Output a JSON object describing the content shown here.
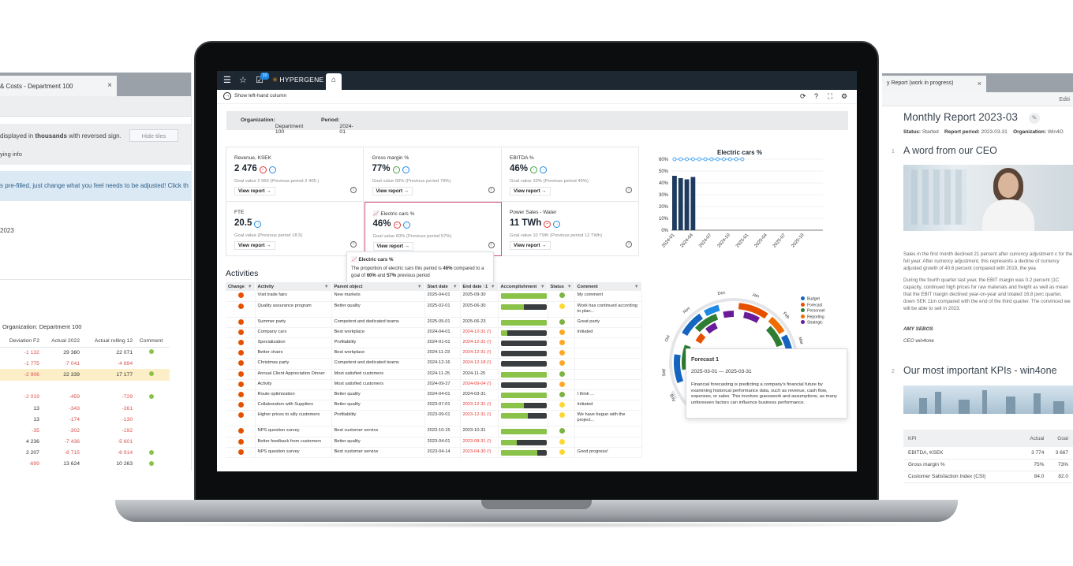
{
  "left_window": {
    "tab_title": "& Costs - Department 100",
    "tab_close": "×",
    "note_prefix": "displayed in ",
    "note_bold": "thousands",
    "note_suffix": " with reversed sign.",
    "hide_tiles_label": "Hide tiles",
    "info_link": "ying info",
    "blue_info": "s pre-filled, just change what you feel needs to be adjusted! Click th",
    "year_text": "2023",
    "organization": "Organization: Department 100",
    "table": {
      "headers": [
        "Deviation F2",
        "Actual 2022",
        "Actual rolling 12",
        "Comment"
      ],
      "rows": [
        {
          "dev": "-1 132",
          "a22": "29 380",
          "r12": "22 071",
          "comment": true,
          "dev_neg": true,
          "a22_neg": false,
          "r12_neg": false,
          "highlight": false
        },
        {
          "dev": "-1 775",
          "a22": "-7 041",
          "r12": "-4 894",
          "comment": false,
          "dev_neg": true,
          "a22_neg": true,
          "r12_neg": true,
          "highlight": false
        },
        {
          "dev": "-2 906",
          "a22": "22 339",
          "r12": "17 177",
          "comment": true,
          "dev_neg": true,
          "a22_neg": false,
          "r12_neg": false,
          "highlight": true
        },
        {
          "dev": "",
          "a22": "",
          "r12": "",
          "comment": false,
          "dev_neg": false,
          "a22_neg": false,
          "r12_neg": false,
          "highlight": false
        },
        {
          "dev": "-2 019",
          "a22": "-459",
          "r12": "-729",
          "comment": true,
          "dev_neg": true,
          "a22_neg": true,
          "r12_neg": true,
          "highlight": false
        },
        {
          "dev": "13",
          "a22": "-343",
          "r12": "-261",
          "comment": false,
          "dev_neg": false,
          "a22_neg": true,
          "r12_neg": true,
          "highlight": false
        },
        {
          "dev": "13",
          "a22": "-174",
          "r12": "-130",
          "comment": false,
          "dev_neg": false,
          "a22_neg": true,
          "r12_neg": true,
          "highlight": false
        },
        {
          "dev": "-35",
          "a22": "-302",
          "r12": "-192",
          "comment": false,
          "dev_neg": true,
          "a22_neg": true,
          "r12_neg": true,
          "highlight": false
        },
        {
          "dev": "4 236",
          "a22": "-7 436",
          "r12": "-5 601",
          "comment": false,
          "dev_neg": false,
          "a22_neg": true,
          "r12_neg": true,
          "highlight": false
        },
        {
          "dev": "2 207",
          "a22": "-8 715",
          "r12": "-6 914",
          "comment": true,
          "dev_neg": false,
          "a22_neg": true,
          "r12_neg": true,
          "highlight": false
        },
        {
          "dev": "-699",
          "a22": "13 624",
          "r12": "10 263",
          "comment": true,
          "dev_neg": true,
          "a22_neg": false,
          "r12_neg": false,
          "highlight": false
        }
      ]
    }
  },
  "right_window": {
    "tab_title": "y Report (work in progress)",
    "tab_close": "×",
    "edit_label": "Editi",
    "title": "Monthly Report 2023-03",
    "status_label": "Status:",
    "status_value": "Started",
    "period_label": "Report period:",
    "period_value": "2023-03-31",
    "org_label": "Organization:",
    "org_value": "Win4O",
    "section1_num": "1",
    "section1_title": "A word from our CEO",
    "para1": "Sales in the first month declined 21 percent after currency adjustment c for the full year. After currency adjustment, this represents a decline of currency adjusted growth of 40.6 percent compared with 2019, the yea",
    "para2": "During the fourth quarter last year, the EBIT margin was 0.2 percent (1C capacity, continued high prices for raw materials and freight as well as mean that the EBIT margin declined year-on-year and totaled 16.8 perc quarter, down SEK 11m compared with the end of the third quarter. The convinced we will be able to sell in 2023.",
    "sig_name": "AMY SEBOS",
    "sig_role": "CEO win4one",
    "section2_num": "2",
    "section2_title": "Our most important KPIs - win4one",
    "kpi_headers": [
      "KPI",
      "Actual",
      "Goal"
    ],
    "kpi_rows": [
      {
        "kpi": "EBITDA, KSEK",
        "actual": "3 774",
        "goal": "3 667"
      },
      {
        "kpi": "Gross margin %",
        "actual": "75%",
        "goal": "73%"
      },
      {
        "kpi": "Customer Satisfaction Index (CSI)",
        "actual": "84.0",
        "goal": "82.0"
      }
    ]
  },
  "app": {
    "brand": "HYPERGENE",
    "badge_count": "10",
    "show_left_column": "Show left-hand column",
    "org_label": "Organization:",
    "org_value": "Department 100",
    "period_label": "Period:",
    "period_value": "2024-01",
    "view_report_label": "View report →",
    "kpis": [
      {
        "title": "Revenue, KSEK",
        "value": "2 476",
        "goal": "Goal value 2 960 (Previous period 2 405 )",
        "icons": [
          "red",
          "blue"
        ],
        "selected": false
      },
      {
        "title": "Gross margin %",
        "value": "77%",
        "goal": "Goal value 50% (Previous period 79%)",
        "icons": [
          "green",
          "blue"
        ],
        "selected": false
      },
      {
        "title": "EBITDA %",
        "value": "46%",
        "goal": "Goal value 10% (Previous period 45%)",
        "icons": [
          "green",
          "blue"
        ],
        "selected": false
      },
      {
        "title": "FTE",
        "value": "20.5",
        "goal": "Goal value (Previous period 18.5)",
        "icons": [
          "blue"
        ],
        "selected": false
      },
      {
        "title": "Electric cars %",
        "value": "46%",
        "goal": "Goal value 60% (Previous period 57%)",
        "icons": [
          "red",
          "blue"
        ],
        "selected": true
      },
      {
        "title": "Power Sales - Water",
        "value": "11 TWh",
        "goal": "Goal value 10 TWh (Previous period 12 TWh)",
        "icons": [
          "red",
          "blue"
        ],
        "selected": false
      }
    ],
    "tooltip": {
      "title": "Electric cars %",
      "text_a": "The proportion of electric cars this period is ",
      "v1": "46%",
      "text_b": " compared to a goal of ",
      "v2": "60%",
      "text_c": " and ",
      "v3": "57%",
      "text_d": " previous period"
    },
    "activities": {
      "title": "Activities",
      "headers": [
        "Change",
        "Activity",
        "Parent object",
        "Start date",
        "End date ↑1",
        "Accomplishment",
        "Status",
        "Comment"
      ],
      "rows": [
        {
          "activity": "Visit trade fairs",
          "parent": "New markets",
          "start": "2025-04-01",
          "end": "2025-09-30",
          "overdue": false,
          "acc": 100,
          "status": "green",
          "comment": "My comment"
        },
        {
          "activity": "Quality assurance program",
          "parent": "Better quality",
          "start": "2025-02-01",
          "end": "2025-06-30",
          "overdue": false,
          "acc": 50,
          "status": "yellow",
          "comment": "Work has continued according to plan..."
        },
        {
          "activity": "Summer party",
          "parent": "Competent and dedicated teams",
          "start": "2025-05-01",
          "end": "2025-06-23",
          "overdue": false,
          "acc": 100,
          "status": "green",
          "comment": "Great party"
        },
        {
          "activity": "Company cars",
          "parent": "Best workplace",
          "start": "2024-04-01",
          "end": "2024-12-31 (!)",
          "overdue": true,
          "acc": 15,
          "status": "orange",
          "comment": "Initiated"
        },
        {
          "activity": "Specialization",
          "parent": "Profitability",
          "start": "2024-01-01",
          "end": "2024-12-31 (!)",
          "overdue": true,
          "acc": 0,
          "status": "orange",
          "comment": ""
        },
        {
          "activity": "Better chairs",
          "parent": "Best workplace",
          "start": "2024-11-23",
          "end": "2024-12-31 (!)",
          "overdue": true,
          "acc": 0,
          "status": "orange",
          "comment": ""
        },
        {
          "activity": "Christmas party",
          "parent": "Competent and dedicated teams",
          "start": "2024-12-16",
          "end": "2024-12-18 (!)",
          "overdue": true,
          "acc": 0,
          "status": "orange",
          "comment": ""
        },
        {
          "activity": "Annual Client Appreciation Dinner",
          "parent": "Most satisfied customers",
          "start": "2024-11-25",
          "end": "2024-11-25",
          "overdue": false,
          "acc": 100,
          "status": "green",
          "comment": ""
        },
        {
          "activity": "Activity",
          "parent": "Most satisfied customers",
          "start": "2024-09-27",
          "end": "2024-09-04 (!)",
          "overdue": true,
          "acc": 0,
          "status": "orange",
          "comment": ""
        },
        {
          "activity": "Route optimization",
          "parent": "Better quality",
          "start": "2024-04-01",
          "end": "2024-03-31",
          "overdue": false,
          "acc": 100,
          "status": "green",
          "comment": "I think ..."
        },
        {
          "activity": "Collaboration with Suppliers",
          "parent": "Better quality",
          "start": "2023-07-01",
          "end": "2023-12-31 (!)",
          "overdue": true,
          "acc": 50,
          "status": "yellow",
          "comment": "Initiated"
        },
        {
          "activity": "Higher prices to silly customers",
          "parent": "Profitability",
          "start": "2023-09-01",
          "end": "2023-12-31 (!)",
          "overdue": true,
          "acc": 60,
          "status": "yellow",
          "comment": "We have begun with the project..."
        },
        {
          "activity": "NPS question survey",
          "parent": "Best customer service",
          "start": "2023-10-15",
          "end": "2023-10-31",
          "overdue": false,
          "acc": 100,
          "status": "green",
          "comment": ""
        },
        {
          "activity": "Better feedback from customers",
          "parent": "Better quality",
          "start": "2023-04-01",
          "end": "2023-08-31 (!)",
          "overdue": true,
          "acc": 35,
          "status": "yellow",
          "comment": ""
        },
        {
          "activity": "NPS question survey",
          "parent": "Best customer service",
          "start": "2023-04-14",
          "end": "2023-04-30 (!)",
          "overdue": true,
          "acc": 80,
          "status": "yellow",
          "comment": "Good progress!"
        }
      ]
    },
    "forecast_tip": {
      "title": "Forecast 1",
      "dates": "2025-03-01 — 2025-03-31",
      "text": "Financial forecasting is predicting a company's financial future by examining historical performance data, such as revenue, cash flow, expenses, or sales. This involves guesswork and assumptions, as many unforeseen factors can influence business performance."
    },
    "sunburst": {
      "month_labels": [
        "Dec",
        "Jan",
        "Feb",
        "Mar",
        "Nov",
        "Oct",
        "Sep",
        "Aug"
      ],
      "legend": [
        {
          "name": "Budget",
          "color": "#1565c0"
        },
        {
          "name": "Forecast",
          "color": "#e65100"
        },
        {
          "name": "Personnel",
          "color": "#2e7d32"
        },
        {
          "name": "Reporting",
          "color": "#ef6c00"
        },
        {
          "name": "Strategic",
          "color": "#6a1b9a"
        }
      ]
    }
  },
  "chart_data": {
    "type": "bar",
    "title": "Electric cars %",
    "categories": [
      "2024-01",
      "2024-02",
      "2024-03",
      "2024-04",
      "2024-05",
      "2024-06",
      "2024-07",
      "2024-08",
      "2024-09",
      "2024-10",
      "2024-11",
      "2024-12",
      "2025-01",
      "2025-02",
      "2025-03",
      "2025-04",
      "2025-05",
      "2025-06",
      "2025-07",
      "2025-08",
      "2025-09",
      "2025-10"
    ],
    "x_tick_labels": [
      "2024-01",
      "2024-04",
      "2024-07",
      "2024-10",
      "2025-01",
      "2025-04",
      "2025-07",
      "2025-10"
    ],
    "series": [
      {
        "values": [
          46,
          44,
          43,
          45,
          null,
          null,
          null,
          null,
          null,
          null,
          null,
          null,
          null,
          null,
          null,
          null,
          null,
          null,
          null,
          null,
          null,
          null
        ],
        "color": "#1f3a5f"
      },
      {
        "values": [
          60,
          60,
          60,
          60,
          60,
          60,
          60,
          60,
          60,
          60,
          60,
          60,
          null,
          null,
          null,
          null,
          null,
          null,
          null,
          null,
          null,
          null
        ],
        "color": "#42a5f5"
      }
    ],
    "y_ticks": [
      "0%",
      "10%",
      "20%",
      "30%",
      "40%",
      "50%",
      "60%"
    ],
    "ylim": [
      0,
      60
    ],
    "grid": true
  }
}
